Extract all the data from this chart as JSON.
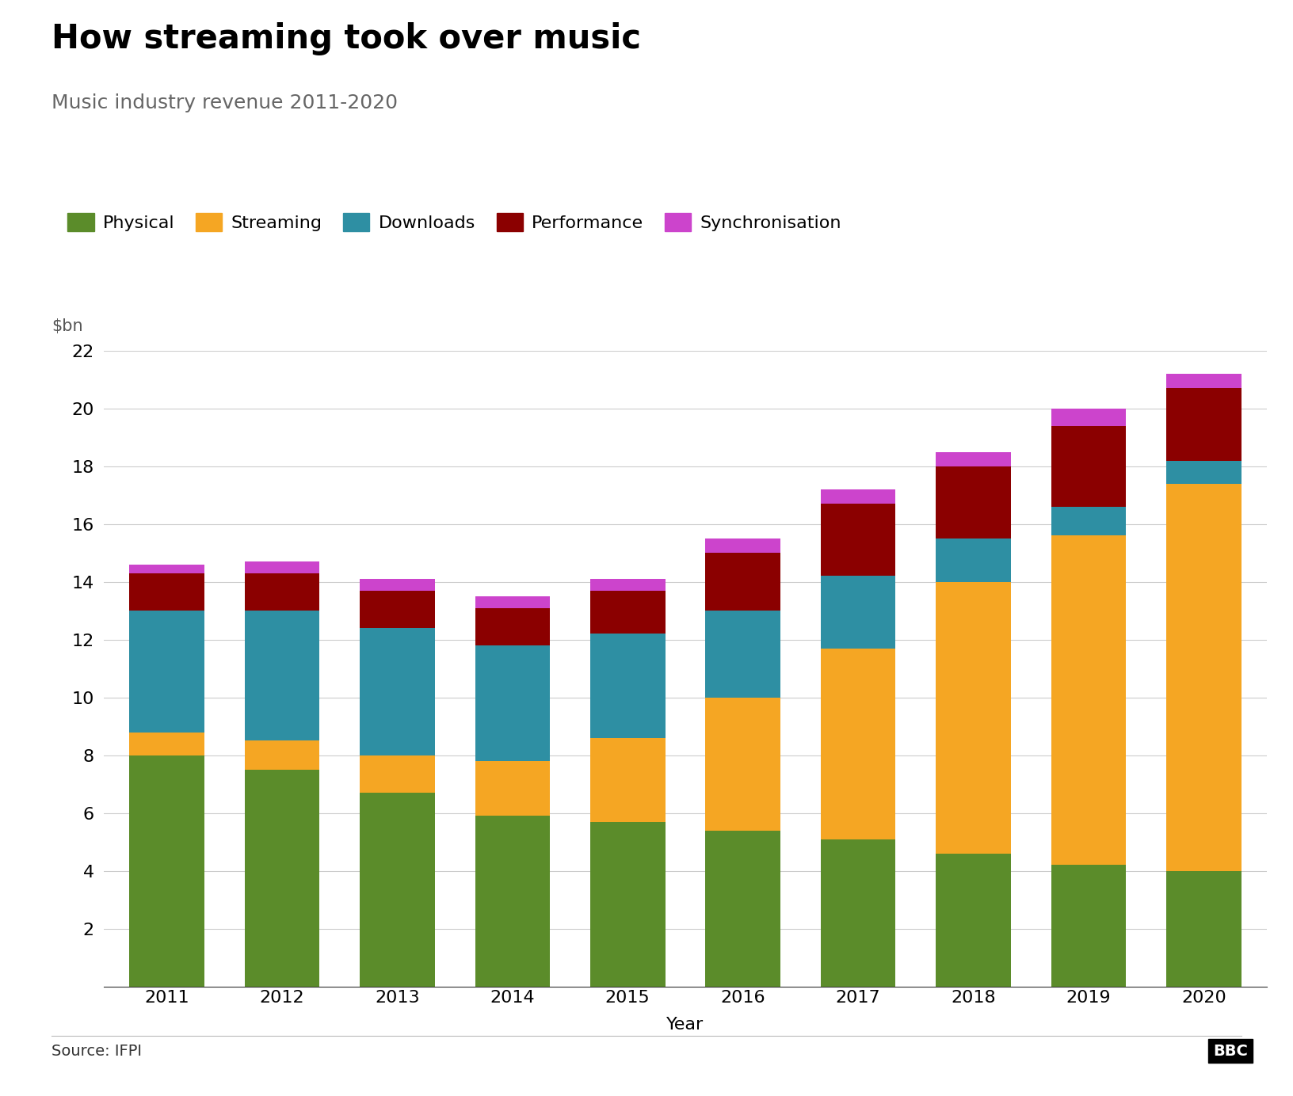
{
  "title": "How streaming took over music",
  "subtitle": "Music industry revenue 2011-2020",
  "xlabel": "Year",
  "ylabel": "$bn",
  "source": "Source: IFPI",
  "bbc_label": "BBC",
  "years": [
    2011,
    2012,
    2013,
    2014,
    2015,
    2016,
    2017,
    2018,
    2019,
    2020
  ],
  "categories": [
    "Physical",
    "Streaming",
    "Downloads",
    "Performance",
    "Synchronisation"
  ],
  "colors": [
    "#5b8c2a",
    "#f5a623",
    "#2e8fa3",
    "#8b0000",
    "#cc44cc"
  ],
  "data": {
    "Physical": [
      8.0,
      7.5,
      6.7,
      5.9,
      5.7,
      5.4,
      5.1,
      4.6,
      4.2,
      4.0
    ],
    "Streaming": [
      0.8,
      1.0,
      1.3,
      1.9,
      2.9,
      4.6,
      6.6,
      9.4,
      11.4,
      13.4
    ],
    "Downloads": [
      4.2,
      4.5,
      4.4,
      4.0,
      3.6,
      3.0,
      2.5,
      1.5,
      1.0,
      0.8
    ],
    "Performance": [
      1.3,
      1.3,
      1.3,
      1.3,
      1.5,
      2.0,
      2.5,
      2.5,
      2.8,
      2.5
    ],
    "Synchronisation": [
      0.3,
      0.4,
      0.4,
      0.4,
      0.4,
      0.5,
      0.5,
      0.5,
      0.6,
      0.5
    ]
  },
  "ylim": [
    0,
    22
  ],
  "yticks": [
    0,
    2,
    4,
    6,
    8,
    10,
    12,
    14,
    16,
    18,
    20,
    22
  ],
  "background_color": "#ffffff",
  "title_fontsize": 30,
  "subtitle_fontsize": 18,
  "tick_fontsize": 16,
  "xlabel_fontsize": 16,
  "ylabel_fontsize": 15,
  "legend_fontsize": 16,
  "source_fontsize": 14,
  "bar_width": 0.65
}
